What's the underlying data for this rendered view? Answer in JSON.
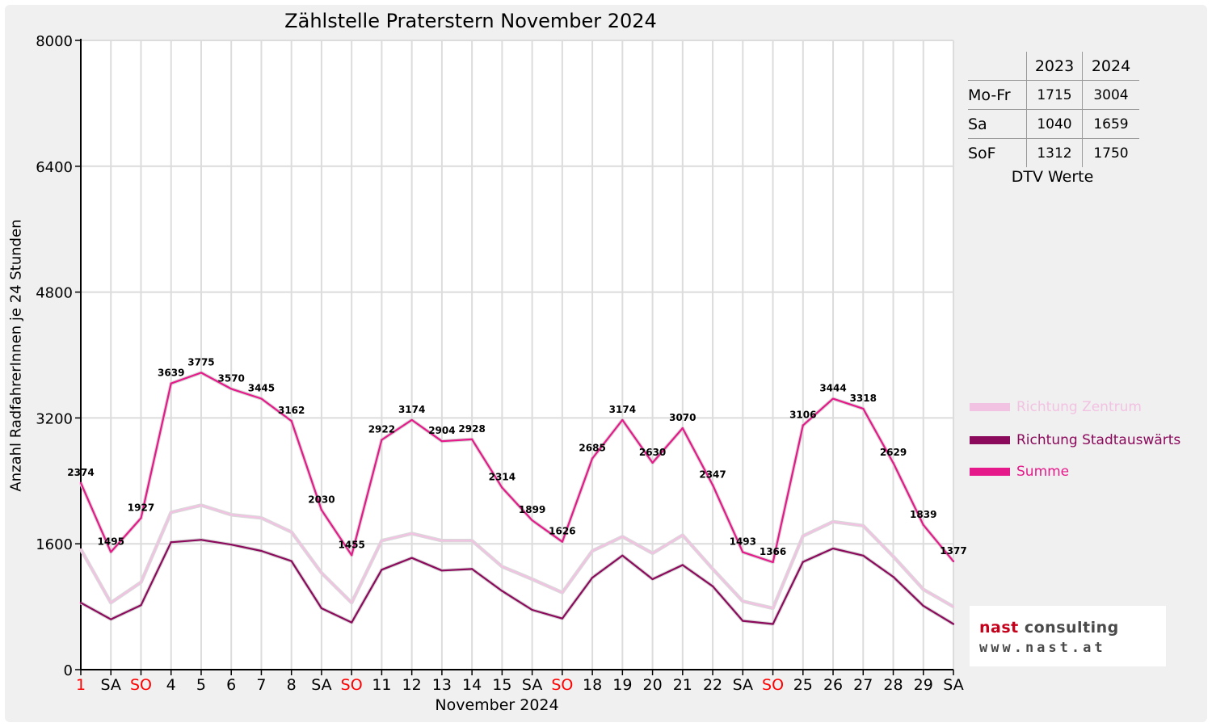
{
  "chart_data": {
    "type": "line",
    "title": "Zählstelle Praterstern November 2024",
    "xlabel": "November 2024",
    "ylabel": "Anzahl RadfahrerInnen je 24 Stunden",
    "ylim": [
      0,
      8000
    ],
    "yticks": [
      0,
      1600,
      3200,
      4800,
      6400,
      8000
    ],
    "grid": true,
    "legend_position": "right",
    "categories": [
      "1",
      "SA",
      "SO",
      "4",
      "5",
      "6",
      "7",
      "8",
      "SA",
      "SO",
      "11",
      "12",
      "13",
      "14",
      "15",
      "SA",
      "SO",
      "18",
      "19",
      "20",
      "21",
      "22",
      "SA",
      "SO",
      "25",
      "26",
      "27",
      "28",
      "29",
      "SA"
    ],
    "highlighted_categories": [
      0,
      2,
      9,
      16,
      23
    ],
    "highlight_color": "#ff0000",
    "series": [
      {
        "name": "Richtung Zentrum",
        "color": "#f2c2e2",
        "show_labels": false,
        "values": [
          1530,
          850,
          1110,
          2000,
          2090,
          1970,
          1930,
          1750,
          1230,
          850,
          1640,
          1730,
          1640,
          1640,
          1310,
          1150,
          980,
          1510,
          1690,
          1480,
          1710,
          1280,
          870,
          780,
          1700,
          1880,
          1830,
          1440,
          1020,
          800
        ]
      },
      {
        "name": "Richtung Stadtauswärts",
        "color": "#8b0a5c",
        "show_labels": false,
        "values": [
          850,
          640,
          820,
          1620,
          1650,
          1590,
          1510,
          1380,
          780,
          600,
          1270,
          1420,
          1260,
          1280,
          1000,
          760,
          650,
          1170,
          1450,
          1150,
          1330,
          1060,
          620,
          580,
          1370,
          1540,
          1450,
          1180,
          810,
          580
        ]
      },
      {
        "name": "Summe",
        "color": "#e5198a",
        "show_labels": true,
        "values": [
          2374,
          1495,
          1927,
          3639,
          3775,
          3570,
          3445,
          3162,
          2030,
          1455,
          2922,
          3174,
          2904,
          2928,
          2314,
          1899,
          1626,
          2685,
          3174,
          2630,
          3070,
          2347,
          1493,
          1366,
          3106,
          3444,
          3318,
          2629,
          1839,
          1377
        ]
      }
    ]
  },
  "dtv_table": {
    "caption": "DTV Werte",
    "headers": [
      "",
      "2023",
      "2024"
    ],
    "rows": [
      {
        "label": "Mo-Fr",
        "v2023": "1715",
        "v2024": "3004"
      },
      {
        "label": "Sa",
        "v2023": "1040",
        "v2024": "1659"
      },
      {
        "label": "SoF",
        "v2023": "1312",
        "v2024": "1750"
      }
    ]
  },
  "logo": {
    "part1": "nast",
    "part2": " consulting",
    "url": "www.nast.at"
  }
}
